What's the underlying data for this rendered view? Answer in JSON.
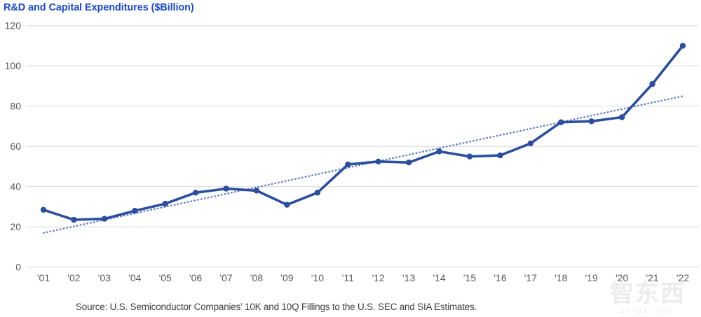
{
  "title": "R&D and Capital Expenditures ($Billion)",
  "source_note": "Source: U.S. Semiconductor Companies’ 10K and 10Q Fillings to the U.S. SEC and SIA Estimates.",
  "watermark": {
    "logo_text": "智东西",
    "url_text": "zhidx.com"
  },
  "colors": {
    "title_blue": "#1c49cf",
    "line_blue": "#2b4f9e",
    "trend_blue": "#5b7cc7",
    "gridline_gray": "#d9d9d9",
    "tick_gray": "#58595b"
  },
  "chart_data": {
    "type": "line",
    "title": "R&D and Capital Expenditures ($Billion)",
    "xlabel": "",
    "ylabel": "",
    "categories": [
      "'01",
      "'02",
      "'03",
      "'04",
      "'05",
      "'06",
      "'07",
      "'08",
      "'09",
      "'10",
      "'11",
      "'12",
      "'13",
      "'14",
      "'15",
      "'16",
      "'17",
      "'18",
      "'19",
      "'20",
      "'21",
      "'22"
    ],
    "values": [
      28.5,
      23.5,
      24,
      28,
      31.5,
      37,
      39,
      38,
      31,
      37,
      51,
      52.5,
      52,
      57.5,
      55,
      55.5,
      61.5,
      72,
      72.5,
      74.5,
      91,
      110
    ],
    "trendline": {
      "style": "dotted",
      "start_value": 17,
      "end_value": 85
    },
    "ylim": [
      0,
      120
    ],
    "yticks": [
      0,
      20,
      40,
      60,
      80,
      100,
      120
    ],
    "grid": "horizontal",
    "legend": "none",
    "marker": "circle"
  }
}
